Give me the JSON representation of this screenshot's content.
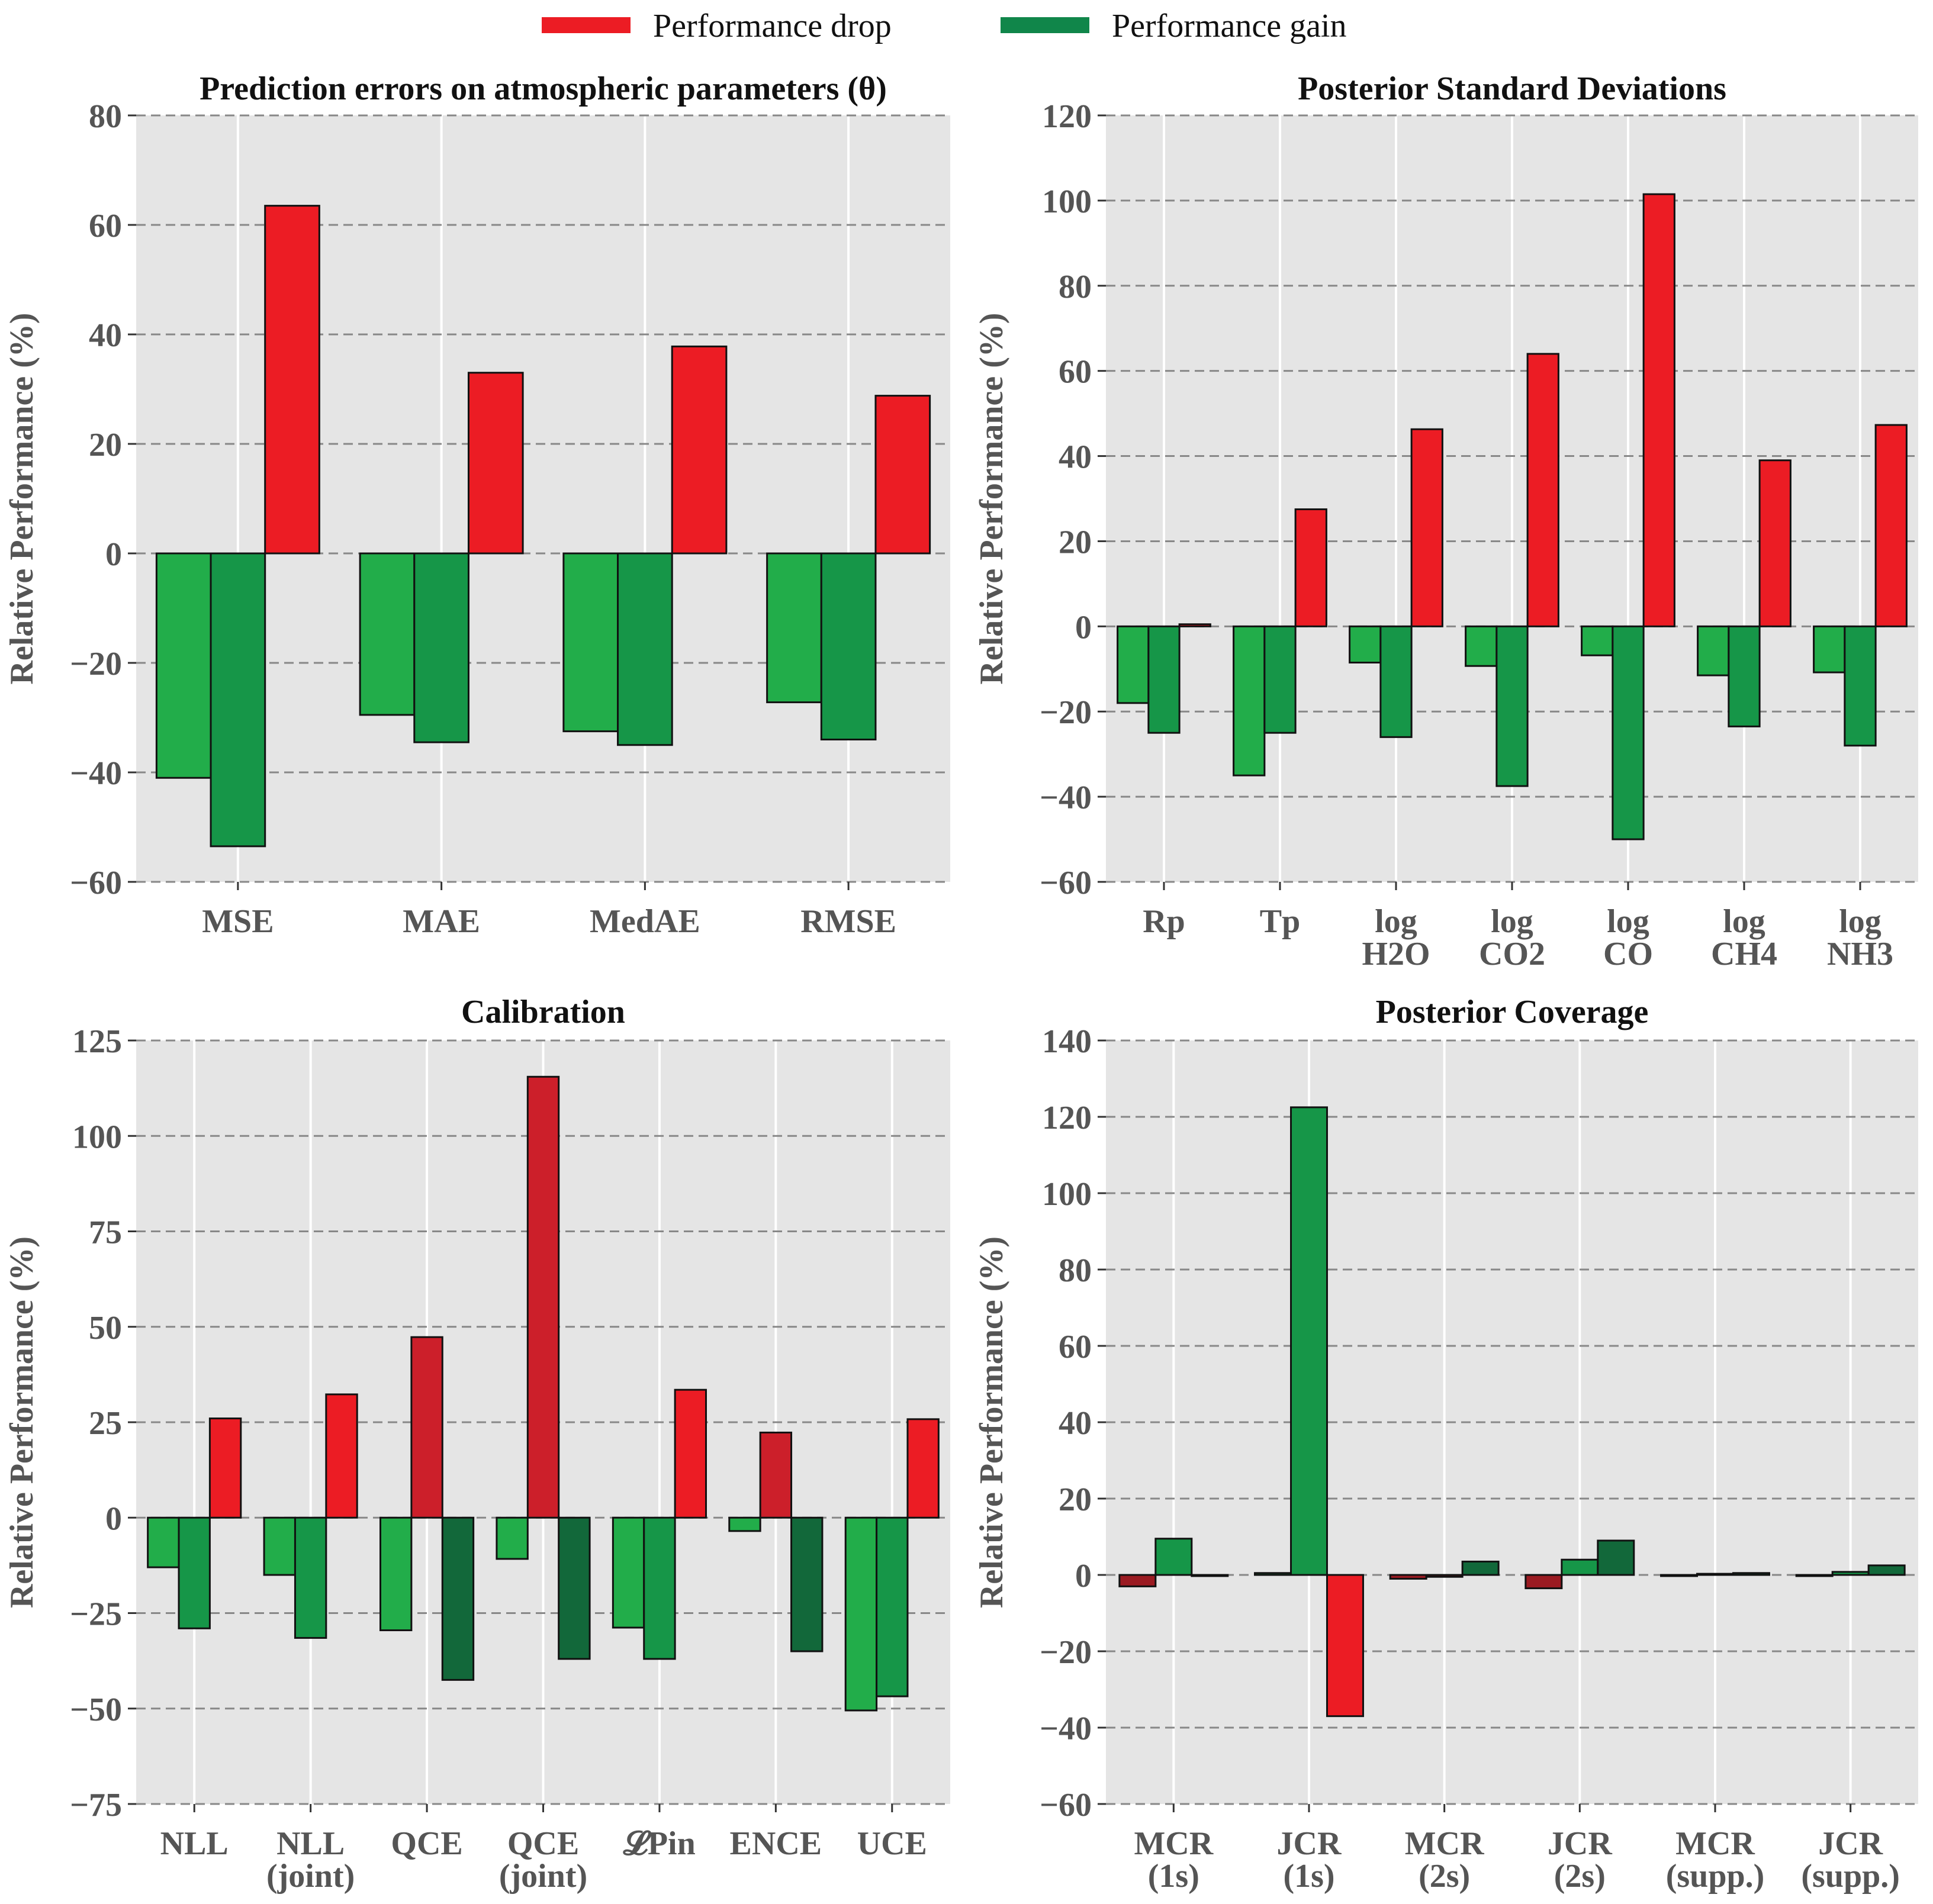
{
  "legend": [
    {
      "label": "Performance drop",
      "color": "#ec1c24"
    },
    {
      "label": "Performance gain",
      "color": "#10864a"
    }
  ],
  "colors": {
    "plot_bg": "#e5e5e5",
    "grid_line": "#ffffff",
    "dashed_line": "#888888",
    "green_light": "#22ad4a",
    "green_mid": "#169648",
    "green_dark": "#12683a",
    "red_bright": "#ec1c24",
    "red_mid": "#cc1f2a",
    "red_dark": "#9b1b22"
  },
  "chart_data": [
    {
      "type": "bar",
      "title": "Prediction errors on atmospheric parameters (θ)",
      "ylabel": "Relative Performance (%)",
      "xlabel": "",
      "ylim": [
        -60,
        80
      ],
      "yticks": [
        -60,
        -40,
        -20,
        0,
        20,
        40,
        60,
        80
      ],
      "ytick_labels": [
        "−60",
        "−40",
        "−20",
        "0",
        "20",
        "40",
        "60",
        "80"
      ],
      "grid": true,
      "categories": [
        [
          "MSE"
        ],
        [
          "MAE"
        ],
        [
          "MedAE"
        ],
        [
          "RMSE"
        ]
      ],
      "series": [
        {
          "values": [
            -41,
            -29.5,
            -32.5,
            -27.2
          ],
          "colors": [
            "green_light",
            "green_light",
            "green_light",
            "green_light"
          ]
        },
        {
          "values": [
            -53.5,
            -34.5,
            -35,
            -34
          ],
          "colors": [
            "green_mid",
            "green_mid",
            "green_mid",
            "green_mid"
          ]
        },
        {
          "values": [
            63.5,
            33,
            37.8,
            28.8
          ],
          "colors": [
            "red_bright",
            "red_bright",
            "red_bright",
            "red_bright"
          ]
        }
      ]
    },
    {
      "type": "bar",
      "title": "Posterior Standard Deviations",
      "ylabel": "Relative Performance (%)",
      "xlabel": "",
      "ylim": [
        -60,
        120
      ],
      "yticks": [
        -60,
        -40,
        -20,
        0,
        20,
        40,
        60,
        80,
        100,
        120
      ],
      "ytick_labels": [
        "−60",
        "−40",
        "−20",
        "0",
        "20",
        "40",
        "60",
        "80",
        "100",
        "120"
      ],
      "grid": true,
      "categories": [
        [
          "Rp"
        ],
        [
          "Tp"
        ],
        [
          "log",
          "H2O"
        ],
        [
          "log",
          "CO2"
        ],
        [
          "log",
          "CO"
        ],
        [
          "log",
          "CH4"
        ],
        [
          "log",
          "NH3"
        ]
      ],
      "series": [
        {
          "values": [
            -18,
            -35,
            -8.5,
            -9.3,
            -6.8,
            -11.5,
            -10.8
          ],
          "colors": [
            "green_light",
            "green_light",
            "green_light",
            "green_light",
            "green_light",
            "green_light",
            "green_light"
          ]
        },
        {
          "values": [
            -25,
            -25,
            -26,
            -37.5,
            -50,
            -23.5,
            -28
          ],
          "colors": [
            "green_mid",
            "green_mid",
            "green_mid",
            "green_mid",
            "green_mid",
            "green_mid",
            "green_mid"
          ]
        },
        {
          "values": [
            0.5,
            27.5,
            46.3,
            64,
            101.5,
            39,
            47.3
          ],
          "colors": [
            "red_bright",
            "red_bright",
            "red_bright",
            "red_bright",
            "red_bright",
            "red_bright",
            "red_bright"
          ]
        }
      ]
    },
    {
      "type": "bar",
      "title": "Calibration",
      "ylabel": "Relative Performance (%)",
      "xlabel": "",
      "ylim": [
        -75,
        125
      ],
      "yticks": [
        -75,
        -50,
        -25,
        0,
        25,
        50,
        75,
        100,
        125
      ],
      "ytick_labels": [
        "−75",
        "−50",
        "−25",
        "0",
        "25",
        "50",
        "75",
        "100",
        "125"
      ],
      "grid": true,
      "categories": [
        [
          "NLL"
        ],
        [
          "NLL",
          "(joint)"
        ],
        [
          "QCE"
        ],
        [
          "QCE",
          "(joint)"
        ],
        [
          "𝓛Pin"
        ],
        [
          "ENCE"
        ],
        [
          "UCE"
        ]
      ],
      "series": [
        {
          "values": [
            -13,
            -15,
            -29.5,
            -10.8,
            -28.8,
            -3.5,
            -50.5
          ],
          "colors": [
            "green_light",
            "green_light",
            "green_light",
            "green_light",
            "green_light",
            "green_light",
            "green_light"
          ]
        },
        {
          "values": [
            -29,
            -31.5,
            47.3,
            115.5,
            -37,
            22.3,
            -46.8
          ],
          "colors": [
            "green_mid",
            "green_mid",
            "red_mid",
            "red_mid",
            "green_mid",
            "red_mid",
            "green_mid"
          ]
        },
        {
          "values": [
            26,
            32.3,
            -42.5,
            -37,
            33.5,
            -35,
            25.8
          ],
          "colors": [
            "red_bright",
            "red_bright",
            "green_dark",
            "green_dark",
            "red_bright",
            "green_dark",
            "red_bright"
          ]
        }
      ]
    },
    {
      "type": "bar",
      "title": "Posterior Coverage",
      "ylabel": "Relative Performance (%)",
      "xlabel": "",
      "ylim": [
        -60,
        140
      ],
      "yticks": [
        -60,
        -40,
        -20,
        0,
        20,
        40,
        60,
        80,
        100,
        120,
        140
      ],
      "ytick_labels": [
        "−60",
        "−40",
        "−20",
        "0",
        "20",
        "40",
        "60",
        "80",
        "100",
        "120",
        "140"
      ],
      "grid": true,
      "categories": [
        [
          "MCR",
          "(1s)"
        ],
        [
          "JCR",
          "(1s)"
        ],
        [
          "MCR",
          "(2s)"
        ],
        [
          "JCR",
          "(2s)"
        ],
        [
          "MCR",
          "(supp.)"
        ],
        [
          "JCR",
          "(supp.)"
        ]
      ],
      "series": [
        {
          "values": [
            -3,
            0.5,
            -1,
            -3.5,
            -0.3,
            -0.3
          ],
          "colors": [
            "red_dark",
            "green_light",
            "red_dark",
            "red_dark",
            "red_dark",
            "red_dark"
          ]
        },
        {
          "values": [
            9.5,
            122.5,
            -0.5,
            4,
            0.3,
            0.8
          ],
          "colors": [
            "green_mid",
            "green_mid",
            "red_dark",
            "green_mid",
            "green_mid",
            "green_mid"
          ]
        },
        {
          "values": [
            -0.3,
            -37,
            3.5,
            9,
            0.5,
            2.5
          ],
          "colors": [
            "red_dark",
            "red_bright",
            "green_dark",
            "green_dark",
            "green_dark",
            "green_dark"
          ]
        }
      ]
    }
  ]
}
